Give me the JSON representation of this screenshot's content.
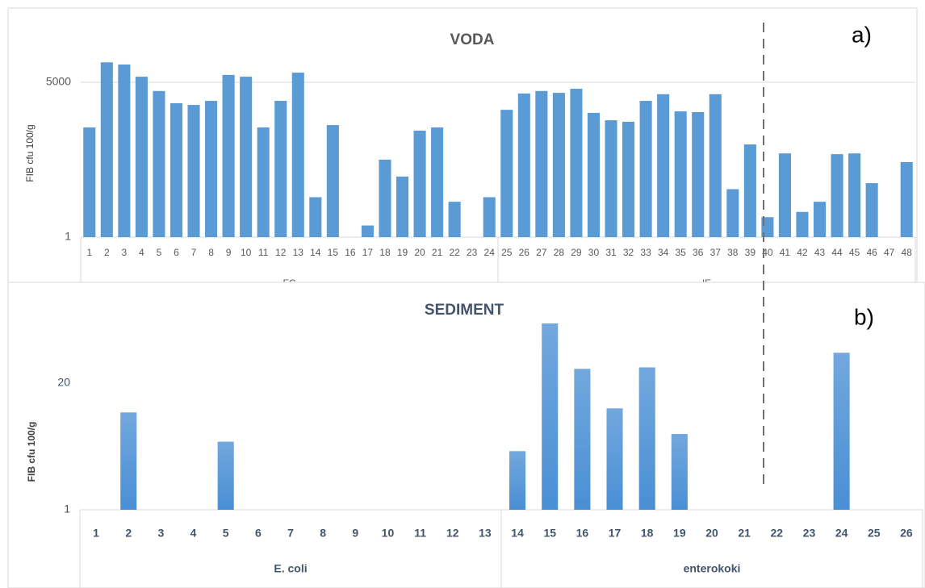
{
  "chart_data": [
    {
      "type": "bar",
      "title": "VODA",
      "ylabel": "FIB cfu 100/g",
      "annotation": "a)",
      "log": true,
      "grid": true,
      "color": "#5b9bd5",
      "gradient": false,
      "ylim": [
        1,
        100000
      ],
      "yticks": [
        1,
        5000
      ],
      "groups": [
        {
          "name": "FC",
          "categories": [
            "1",
            "2",
            "3",
            "4",
            "5",
            "6",
            "7",
            "8",
            "9",
            "10",
            "11",
            "12",
            "13",
            "14",
            "15",
            "16",
            "17",
            "18",
            "19",
            "20",
            "21",
            "22",
            "23",
            "24"
          ],
          "values": [
            417,
            15000,
            13300,
            6800,
            3100,
            1580,
            1440,
            1800,
            7500,
            6800,
            417,
            1800,
            8500,
            9,
            475,
            null,
            1.9,
            71,
            28,
            350,
            417,
            7,
            null,
            9
          ]
        },
        {
          "name": "IE",
          "categories": [
            "25",
            "26",
            "27",
            "28",
            "29",
            "30",
            "31",
            "32",
            "33",
            "34",
            "35",
            "36",
            "37",
            "38",
            "39",
            "40",
            "41",
            "42",
            "43",
            "44",
            "45",
            "46",
            "47",
            "48"
          ],
          "values": [
            1100,
            2700,
            3100,
            2800,
            3500,
            930,
            620,
            570,
            1800,
            2600,
            1010,
            970,
            2600,
            14,
            164,
            3,
            100,
            4,
            7,
            96,
            100,
            19.5,
            null,
            62
          ]
        }
      ]
    },
    {
      "type": "bar",
      "title": "SEDIMENT",
      "ylabel": "FIB cfu 100/g",
      "annotation": "b)",
      "log": true,
      "grid": false,
      "color": "#4a8fd4",
      "gradient": true,
      "ylim": [
        1,
        100
      ],
      "yticks": [
        1,
        20
      ],
      "groups": [
        {
          "name": "E. coli",
          "categories": [
            "1",
            "2",
            "3",
            "4",
            "5",
            "6",
            "7",
            "8",
            "9",
            "10",
            "11",
            "12",
            "13"
          ],
          "values": [
            null,
            10,
            null,
            null,
            5,
            null,
            null,
            null,
            null,
            null,
            null,
            null,
            null
          ]
        },
        {
          "name": "enterokoki",
          "categories": [
            "14",
            "15",
            "16",
            "17",
            "18",
            "19",
            "20",
            "21",
            "22",
            "23",
            "24",
            "25",
            "26"
          ],
          "values": [
            4,
            82,
            28,
            11,
            29,
            6,
            null,
            null,
            null,
            null,
            41,
            null,
            null
          ]
        }
      ]
    }
  ]
}
